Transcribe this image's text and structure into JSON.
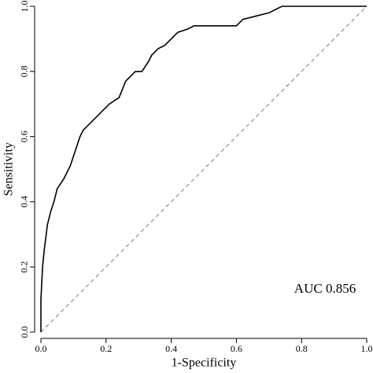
{
  "chart_data": {
    "type": "line",
    "xlabel": "1-Specificity",
    "ylabel": "Sensitivity",
    "annotation": "AUC  0.856",
    "x": [
      0,
      0,
      0.005,
      0.01,
      0.02,
      0.03,
      0.04,
      0.05,
      0.07,
      0.09,
      0.1,
      0.11,
      0.12,
      0.13,
      0.15,
      0.17,
      0.19,
      0.21,
      0.24,
      0.26,
      0.29,
      0.31,
      0.33,
      0.34,
      0.36,
      0.38,
      0.4,
      0.42,
      0.45,
      0.47,
      0.6,
      0.62,
      0.66,
      0.7,
      0.72,
      0.74,
      1
    ],
    "values": [
      0,
      0.1,
      0.2,
      0.25,
      0.33,
      0.37,
      0.4,
      0.44,
      0.47,
      0.51,
      0.54,
      0.57,
      0.6,
      0.62,
      0.64,
      0.66,
      0.68,
      0.7,
      0.72,
      0.77,
      0.8,
      0.8,
      0.83,
      0.85,
      0.87,
      0.88,
      0.9,
      0.92,
      0.93,
      0.94,
      0.94,
      0.96,
      0.97,
      0.98,
      0.99,
      1,
      1
    ],
    "color": "#000000",
    "reference_line": true,
    "xlim": [
      0,
      1
    ],
    "ylim": [
      0,
      1
    ],
    "xticks": [
      {
        "value": 0,
        "label": "0.0"
      },
      0.2,
      0.4,
      0.6,
      0.8,
      {
        "value": 1,
        "label": "1.0"
      }
    ],
    "yticks": [
      {
        "value": 0,
        "label": "0.0"
      },
      0.2,
      0.4,
      0.6,
      0.8,
      {
        "value": 1,
        "label": "1.0"
      }
    ]
  }
}
